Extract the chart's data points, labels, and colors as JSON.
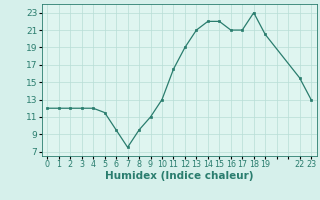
{
  "x": [
    0,
    1,
    2,
    3,
    4,
    5,
    6,
    7,
    8,
    9,
    10,
    11,
    12,
    13,
    14,
    15,
    16,
    17,
    18,
    19,
    22,
    23
  ],
  "y": [
    12.0,
    12.0,
    12.0,
    12.0,
    12.0,
    11.5,
    9.5,
    7.5,
    9.5,
    11.0,
    13.0,
    16.5,
    19.0,
    21.0,
    22.0,
    22.0,
    21.0,
    21.0,
    23.0,
    20.5,
    15.5,
    13.0
  ],
  "xlabel": "Humidex (Indice chaleur)",
  "xlim": [
    -0.5,
    23.5
  ],
  "ylim": [
    6.5,
    24.0
  ],
  "yticks": [
    7,
    9,
    11,
    13,
    15,
    17,
    19,
    21,
    23
  ],
  "xticks": [
    0,
    1,
    2,
    3,
    4,
    5,
    6,
    7,
    8,
    9,
    10,
    11,
    12,
    13,
    14,
    15,
    16,
    17,
    18,
    19,
    20,
    21,
    22,
    23
  ],
  "xtick_labels": [
    "0",
    "1",
    "2",
    "3",
    "4",
    "5",
    "6",
    "7",
    "8",
    "9",
    "10",
    "11",
    "12",
    "13",
    "14",
    "15",
    "16",
    "17",
    "18",
    "19",
    "",
    "",
    "22",
    "23"
  ],
  "line_color": "#2a7d6e",
  "marker_color": "#2a7d6e",
  "bg_color": "#d6f0eb",
  "grid_color": "#b8ddd6",
  "plot_bg": "#dff5f0",
  "xlabel_fontsize": 7.5,
  "ytick_fontsize": 6.5,
  "xtick_fontsize": 5.8
}
